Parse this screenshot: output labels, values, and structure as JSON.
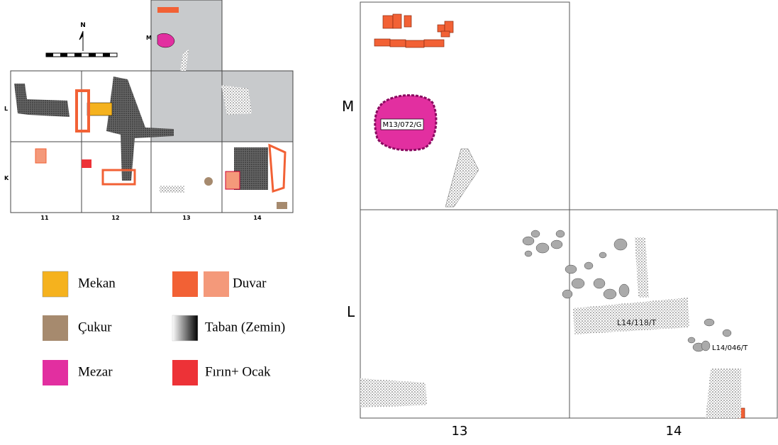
{
  "overview": {
    "north": "N",
    "rows": [
      "M",
      "L",
      "K"
    ],
    "columns": [
      "11",
      "12",
      "13",
      "14"
    ]
  },
  "legend": [
    {
      "label": "Mekan"
    },
    {
      "label": "Duvar"
    },
    {
      "label": "Çukur"
    },
    {
      "label": "Taban (Zemin)"
    },
    {
      "label": "Mezar"
    },
    {
      "label": "Fırın+ Ocak"
    }
  ],
  "detail": {
    "rows": [
      "M",
      "L"
    ],
    "columns": [
      "13",
      "14"
    ],
    "features": [
      "M13/072/G",
      "L14/118/T",
      "L14/046/T"
    ]
  }
}
